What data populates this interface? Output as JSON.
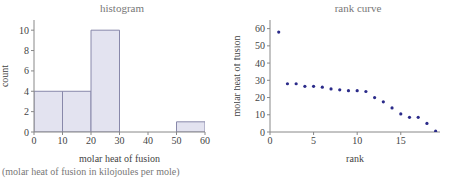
{
  "chart_data": [
    {
      "type": "histogram",
      "title": "histogram",
      "x_label": "molar heat of fusion",
      "y_label": "count",
      "bins": [
        0,
        10,
        20,
        30,
        40,
        50,
        60
      ],
      "counts": [
        4,
        4,
        10,
        0,
        0,
        1
      ],
      "xlim": [
        0,
        60
      ],
      "xticks": [
        0,
        10,
        20,
        30,
        40,
        50,
        60
      ],
      "ylim": [
        0,
        11
      ],
      "yticks": [
        0,
        2,
        4,
        6,
        8,
        10
      ],
      "color": "#e3e3f0"
    },
    {
      "type": "scatter",
      "title": "rank curve",
      "x_label": "rank",
      "y_label": "molar heat of fusion",
      "x": [
        1,
        2,
        3,
        4,
        5,
        6,
        7,
        8,
        9,
        10,
        11,
        12,
        13,
        14,
        15,
        16,
        17,
        18,
        19
      ],
      "values": [
        58,
        28,
        28,
        26.5,
        26.5,
        26,
        25,
        24.5,
        24,
        24,
        23.5,
        20,
        17.5,
        14,
        10.5,
        8.5,
        8.5,
        5,
        0.5
      ],
      "xlim": [
        0,
        19.5
      ],
      "xticks": [
        0,
        5,
        10,
        15
      ],
      "ylim": [
        0,
        65
      ],
      "yticks": [
        0,
        10,
        20,
        30,
        40,
        50,
        60
      ],
      "color": "#2b2b8a"
    }
  ],
  "caption": "(molar heat of fusion in kilojoules per mole)"
}
